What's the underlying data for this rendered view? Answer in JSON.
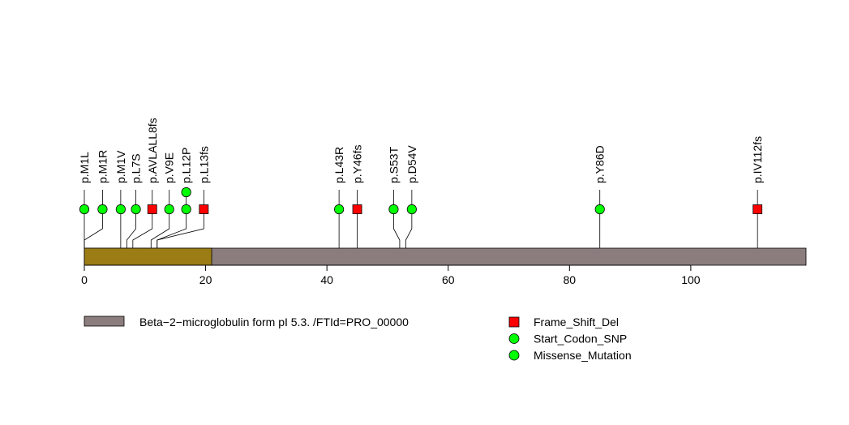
{
  "chart_data": {
    "type": "lollipop",
    "x_axis": {
      "min": 0,
      "max": 119,
      "ticks": [
        0,
        20,
        40,
        60,
        80,
        100
      ],
      "tick_labels": [
        "0",
        "20",
        "40",
        "60",
        "80",
        "100"
      ]
    },
    "protein_length": 119,
    "domains": [
      {
        "start": 0,
        "end": 119,
        "color": "#8b7d7e"
      },
      {
        "start": 0,
        "end": 21,
        "color": "#9b7c15"
      }
    ],
    "mutations": [
      {
        "label": "p.M1L",
        "position": 0,
        "lollipop_position": 0,
        "type": "Start_Codon_SNP",
        "count": 1
      },
      {
        "label": "p.M1R",
        "position": 0,
        "lollipop_position": 3,
        "type": "Start_Codon_SNP",
        "count": 1
      },
      {
        "label": "p.M1V",
        "position": 6,
        "lollipop_position": 6,
        "type": "Start_Codon_SNP",
        "count": 1
      },
      {
        "label": "p.L7S",
        "position": 7,
        "lollipop_position": 8.5,
        "type": "Missense_Mutation",
        "count": 1
      },
      {
        "label": "p.AVLALL8fs",
        "position": 8,
        "lollipop_position": 11.2,
        "type": "Frame_Shift_Del",
        "count": 1
      },
      {
        "label": "p.V9E",
        "position": 11,
        "lollipop_position": 14,
        "type": "Missense_Mutation",
        "count": 1
      },
      {
        "label": "p.L12P",
        "position": 12,
        "lollipop_position": 16.8,
        "type": "Missense_Mutation",
        "count": 2
      },
      {
        "label": "p.L13fs",
        "position": 12,
        "lollipop_position": 19.7,
        "type": "Frame_Shift_Del",
        "count": 1
      },
      {
        "label": "p.L43R",
        "position": 42,
        "lollipop_position": 42,
        "type": "Missense_Mutation",
        "count": 1
      },
      {
        "label": "p.Y46fs",
        "position": 45,
        "lollipop_position": 45,
        "type": "Frame_Shift_Del",
        "count": 1
      },
      {
        "label": "p.S53T",
        "position": 52,
        "lollipop_position": 51,
        "type": "Missense_Mutation",
        "count": 1
      },
      {
        "label": "p.D54V",
        "position": 53,
        "lollipop_position": 54,
        "type": "Missense_Mutation",
        "count": 1
      },
      {
        "label": "p.Y86D",
        "position": 85,
        "lollipop_position": 85,
        "type": "Missense_Mutation",
        "count": 1
      },
      {
        "label": "p.IV112fs",
        "position": 111,
        "lollipop_position": 111,
        "type": "Frame_Shift_Del",
        "count": 1
      }
    ],
    "legend": {
      "domain_entry": {
        "label": "Beta−2−microglobulin form pI 5.3. /FTId=PRO_00000",
        "color": "#8b7d7e"
      },
      "mutation_entries": [
        {
          "label": "Frame_Shift_Del",
          "shape": "square",
          "color": "#ff0000"
        },
        {
          "label": "Start_Codon_SNP",
          "shape": "circle",
          "color": "#00ff00"
        },
        {
          "label": "Missense_Mutation",
          "shape": "circle",
          "color": "#00ff00"
        }
      ]
    },
    "colors": {
      "square": "#ff0000",
      "circle": "#00ff00"
    }
  }
}
